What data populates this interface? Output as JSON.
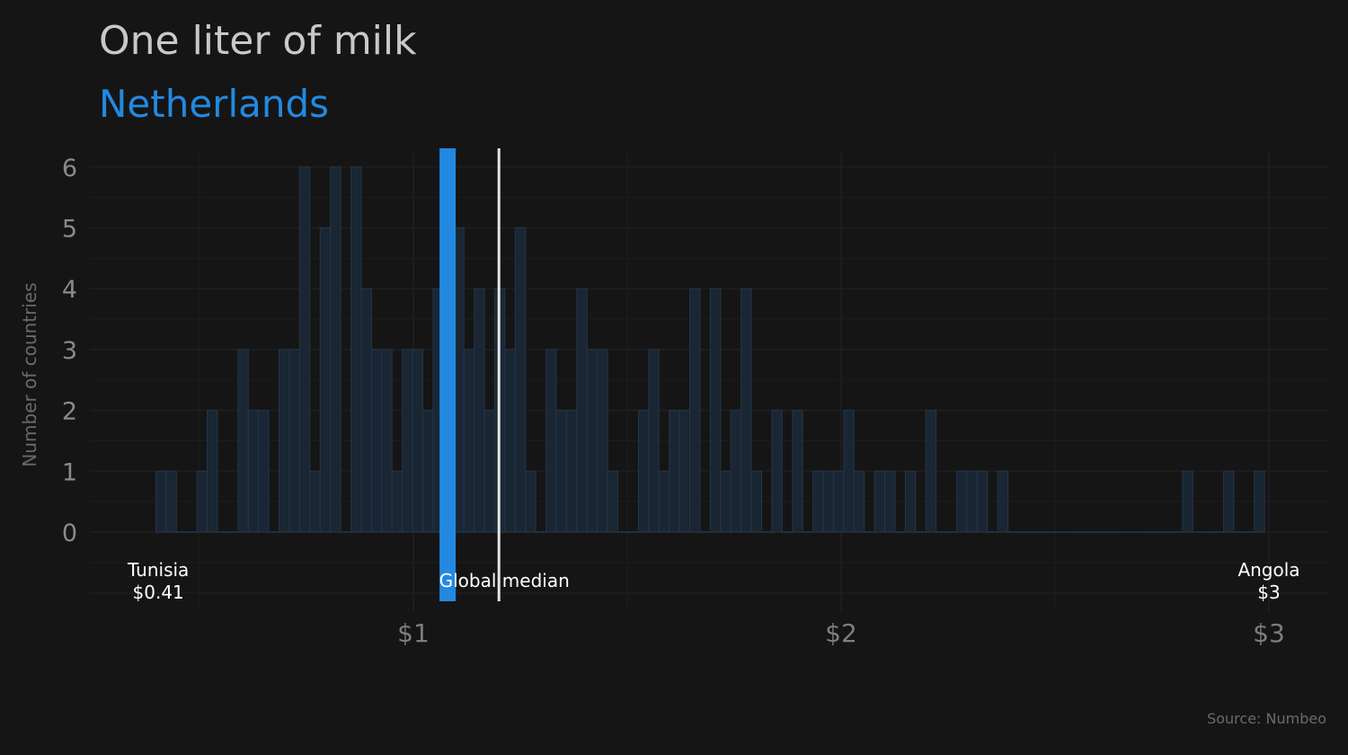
{
  "chart_data": {
    "type": "bar",
    "title": "One liter of milk",
    "subtitle": "Netherlands",
    "ylabel": "Number of countries",
    "source": "Source: Numbeo",
    "xlim": [
      0.3,
      3.1
    ],
    "ylim": [
      -0.5,
      6.3
    ],
    "bin_width": 0.024,
    "x_ticks": [
      {
        "value": 1,
        "label": "$1"
      },
      {
        "value": 2,
        "label": "$2"
      },
      {
        "value": 3,
        "label": "$3"
      }
    ],
    "y_ticks": [
      0,
      1,
      2,
      3,
      4,
      5,
      6
    ],
    "bins": [
      {
        "x": 0.41,
        "count": 1
      },
      {
        "x": 0.434,
        "count": 1
      },
      {
        "x": 0.458,
        "count": 0
      },
      {
        "x": 0.482,
        "count": 0
      },
      {
        "x": 0.506,
        "count": 1
      },
      {
        "x": 0.53,
        "count": 2
      },
      {
        "x": 0.554,
        "count": 0
      },
      {
        "x": 0.578,
        "count": 0
      },
      {
        "x": 0.602,
        "count": 3
      },
      {
        "x": 0.626,
        "count": 2
      },
      {
        "x": 0.65,
        "count": 2
      },
      {
        "x": 0.674,
        "count": 0
      },
      {
        "x": 0.698,
        "count": 3
      },
      {
        "x": 0.722,
        "count": 3
      },
      {
        "x": 0.746,
        "count": 6
      },
      {
        "x": 0.77,
        "count": 1
      },
      {
        "x": 0.794,
        "count": 5
      },
      {
        "x": 0.818,
        "count": 6
      },
      {
        "x": 0.842,
        "count": 0
      },
      {
        "x": 0.866,
        "count": 6
      },
      {
        "x": 0.89,
        "count": 4
      },
      {
        "x": 0.914,
        "count": 3
      },
      {
        "x": 0.938,
        "count": 3
      },
      {
        "x": 0.962,
        "count": 1
      },
      {
        "x": 0.986,
        "count": 3
      },
      {
        "x": 1.01,
        "count": 3
      },
      {
        "x": 1.034,
        "count": 2
      },
      {
        "x": 1.058,
        "count": 4
      },
      {
        "x": 1.082,
        "count": 3
      },
      {
        "x": 1.106,
        "count": 5
      },
      {
        "x": 1.13,
        "count": 3
      },
      {
        "x": 1.154,
        "count": 4
      },
      {
        "x": 1.178,
        "count": 2
      },
      {
        "x": 1.202,
        "count": 4
      },
      {
        "x": 1.226,
        "count": 3
      },
      {
        "x": 1.25,
        "count": 5
      },
      {
        "x": 1.274,
        "count": 1
      },
      {
        "x": 1.298,
        "count": 0
      },
      {
        "x": 1.322,
        "count": 3
      },
      {
        "x": 1.346,
        "count": 2
      },
      {
        "x": 1.37,
        "count": 2
      },
      {
        "x": 1.394,
        "count": 4
      },
      {
        "x": 1.418,
        "count": 3
      },
      {
        "x": 1.442,
        "count": 3
      },
      {
        "x": 1.466,
        "count": 1
      },
      {
        "x": 1.49,
        "count": 0
      },
      {
        "x": 1.514,
        "count": 0
      },
      {
        "x": 1.538,
        "count": 2
      },
      {
        "x": 1.562,
        "count": 3
      },
      {
        "x": 1.586,
        "count": 1
      },
      {
        "x": 1.61,
        "count": 2
      },
      {
        "x": 1.634,
        "count": 2
      },
      {
        "x": 1.658,
        "count": 4
      },
      {
        "x": 1.682,
        "count": 0
      },
      {
        "x": 1.706,
        "count": 4
      },
      {
        "x": 1.73,
        "count": 1
      },
      {
        "x": 1.754,
        "count": 2
      },
      {
        "x": 1.778,
        "count": 4
      },
      {
        "x": 1.802,
        "count": 1
      },
      {
        "x": 1.826,
        "count": 0
      },
      {
        "x": 1.85,
        "count": 2
      },
      {
        "x": 1.874,
        "count": 0
      },
      {
        "x": 1.898,
        "count": 2
      },
      {
        "x": 1.922,
        "count": 0
      },
      {
        "x": 1.946,
        "count": 1
      },
      {
        "x": 1.97,
        "count": 1
      },
      {
        "x": 1.994,
        "count": 1
      },
      {
        "x": 2.018,
        "count": 2
      },
      {
        "x": 2.042,
        "count": 1
      },
      {
        "x": 2.066,
        "count": 0
      },
      {
        "x": 2.09,
        "count": 1
      },
      {
        "x": 2.114,
        "count": 1
      },
      {
        "x": 2.138,
        "count": 0
      },
      {
        "x": 2.162,
        "count": 1
      },
      {
        "x": 2.186,
        "count": 0
      },
      {
        "x": 2.21,
        "count": 2
      },
      {
        "x": 2.234,
        "count": 0
      },
      {
        "x": 2.258,
        "count": 0
      },
      {
        "x": 2.282,
        "count": 1
      },
      {
        "x": 2.306,
        "count": 1
      },
      {
        "x": 2.33,
        "count": 1
      },
      {
        "x": 2.354,
        "count": 0
      },
      {
        "x": 2.378,
        "count": 1
      },
      {
        "x": 2.402,
        "count": 0
      },
      {
        "x": 2.426,
        "count": 0
      },
      {
        "x": 2.45,
        "count": 0
      },
      {
        "x": 2.474,
        "count": 0
      },
      {
        "x": 2.498,
        "count": 0
      },
      {
        "x": 2.522,
        "count": 0
      },
      {
        "x": 2.546,
        "count": 0
      },
      {
        "x": 2.57,
        "count": 0
      },
      {
        "x": 2.594,
        "count": 0
      },
      {
        "x": 2.618,
        "count": 0
      },
      {
        "x": 2.642,
        "count": 0
      },
      {
        "x": 2.666,
        "count": 0
      },
      {
        "x": 2.69,
        "count": 0
      },
      {
        "x": 2.714,
        "count": 0
      },
      {
        "x": 2.738,
        "count": 0
      },
      {
        "x": 2.762,
        "count": 0
      },
      {
        "x": 2.786,
        "count": 0
      },
      {
        "x": 2.81,
        "count": 1
      },
      {
        "x": 2.834,
        "count": 0
      },
      {
        "x": 2.858,
        "count": 0
      },
      {
        "x": 2.882,
        "count": 0
      },
      {
        "x": 2.906,
        "count": 1
      },
      {
        "x": 2.93,
        "count": 0
      },
      {
        "x": 2.954,
        "count": 0
      },
      {
        "x": 2.978,
        "count": 1
      }
    ],
    "highlight": {
      "country": "Netherlands",
      "value": 1.08,
      "color": "#2389e0"
    },
    "median": {
      "value": 1.2,
      "label": "Global median",
      "color": "#e6e6e6"
    },
    "min_label": {
      "country": "Tunisia",
      "value_label": "$0.41",
      "value": 0.41
    },
    "max_label": {
      "country": "Angola",
      "value_label": "$3",
      "value": 3.0
    },
    "colors": {
      "background": "#151515",
      "bar_fill": "#1a2633",
      "bar_stroke": "#22364a",
      "grid": "#1d1d1d"
    }
  }
}
